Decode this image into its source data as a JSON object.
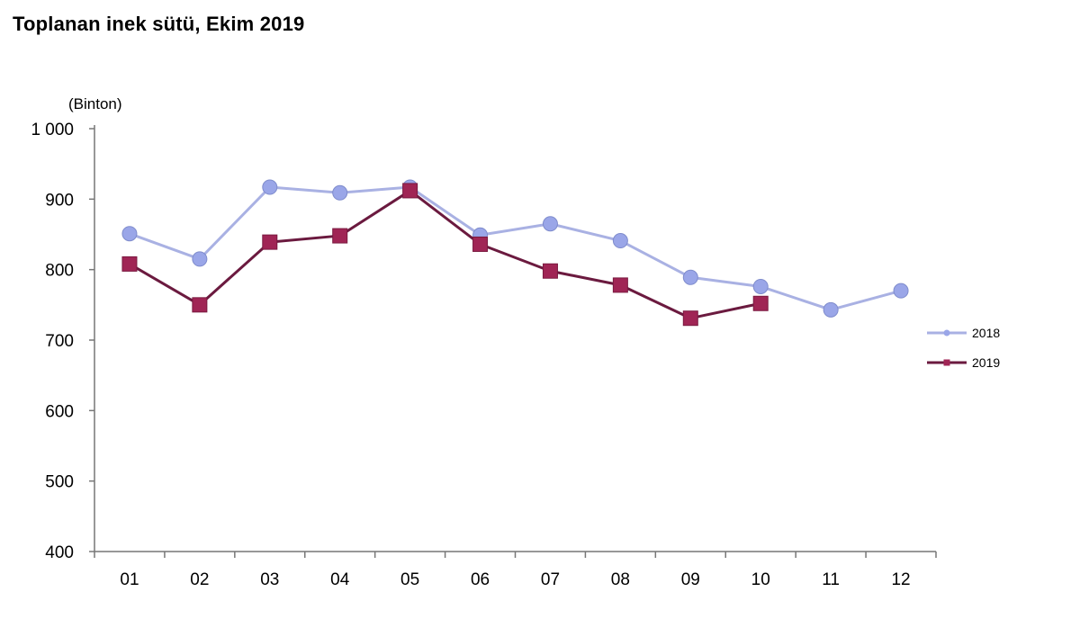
{
  "chart_data": {
    "type": "line",
    "title": "Toplanan inek sütü, Ekim 2019",
    "unit_label": "(Binton)",
    "xlabel": "",
    "ylabel": "",
    "categories": [
      "01",
      "02",
      "03",
      "04",
      "05",
      "06",
      "07",
      "08",
      "09",
      "10",
      "11",
      "12"
    ],
    "ylim": [
      400,
      1000
    ],
    "yticks": [
      400,
      500,
      600,
      700,
      800,
      900,
      1000
    ],
    "ytick_labels": [
      "400",
      "500",
      "600",
      "700",
      "800",
      "900",
      "1 000"
    ],
    "grid": false,
    "legend_position": "right",
    "series": [
      {
        "name": "2018",
        "color": "#9aa6e8",
        "line_color": "#a9b1e3",
        "marker": "circle",
        "values": [
          851,
          815,
          917,
          909,
          917,
          849,
          865,
          841,
          789,
          776,
          743,
          770
        ]
      },
      {
        "name": "2019",
        "color": "#a02555",
        "line_color": "#6b1a3f",
        "marker": "square",
        "values": [
          808,
          750,
          839,
          848,
          912,
          836,
          798,
          778,
          731,
          752,
          null,
          null
        ]
      }
    ]
  }
}
